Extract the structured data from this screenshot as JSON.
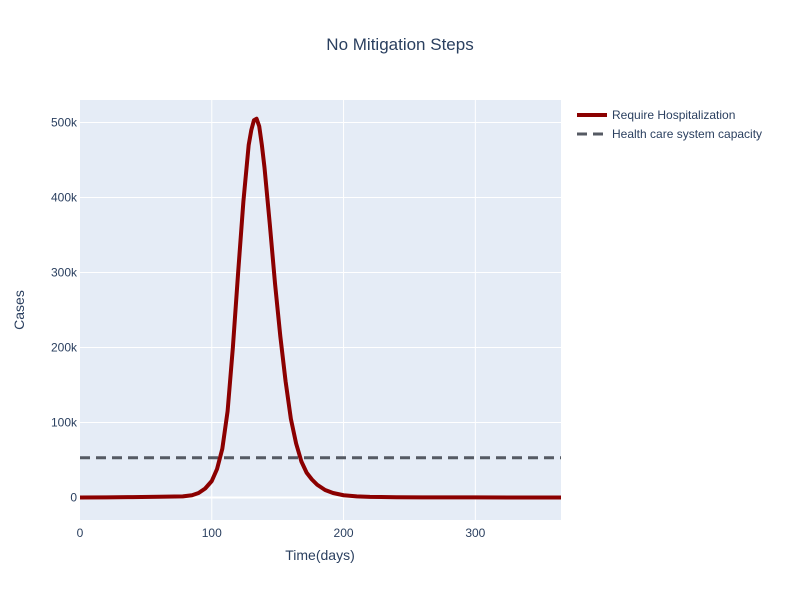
{
  "chart_data": {
    "type": "line",
    "title": "No Mitigation Steps",
    "xlabel": "Time(days)",
    "ylabel": "Cases",
    "xlim": [
      0,
      365
    ],
    "ylim": [
      -30000,
      530000
    ],
    "grid": true,
    "legend_placement": "right",
    "x_ticks": [
      {
        "value": 0,
        "label": "0"
      },
      {
        "value": 100,
        "label": "100"
      },
      {
        "value": 200,
        "label": "200"
      },
      {
        "value": 300,
        "label": "300"
      }
    ],
    "y_ticks": [
      {
        "value": 0,
        "label": "0"
      },
      {
        "value": 100000,
        "label": "100k"
      },
      {
        "value": 200000,
        "label": "200k"
      },
      {
        "value": 300000,
        "label": "300k"
      },
      {
        "value": 400000,
        "label": "400k"
      },
      {
        "value": 500000,
        "label": "500k"
      }
    ],
    "series": [
      {
        "name": "Require Hospitalization",
        "color": "#8b0000",
        "style": "solid",
        "x": [
          0,
          20,
          40,
          60,
          78,
          85,
          90,
          95,
          100,
          104,
          108,
          112,
          116,
          120,
          124,
          128,
          130,
          132,
          134,
          136,
          138,
          140,
          144,
          148,
          152,
          156,
          160,
          164,
          168,
          172,
          176,
          180,
          186,
          192,
          200,
          210,
          220,
          240,
          260,
          300,
          365
        ],
        "y": [
          0,
          200,
          500,
          1000,
          1500,
          3000,
          6000,
          12000,
          22000,
          38000,
          65000,
          115000,
          200000,
          300000,
          395000,
          470000,
          490000,
          503000,
          505000,
          495000,
          470000,
          440000,
          365000,
          285000,
          215000,
          155000,
          105000,
          72000,
          48000,
          33000,
          24000,
          17000,
          10000,
          6000,
          3000,
          1500,
          800,
          400,
          200,
          100,
          50
        ]
      },
      {
        "name": "Health care system capacity",
        "color": "#555a63",
        "style": "dash",
        "x": [
          0,
          365
        ],
        "y": [
          53000,
          53000
        ]
      }
    ]
  }
}
